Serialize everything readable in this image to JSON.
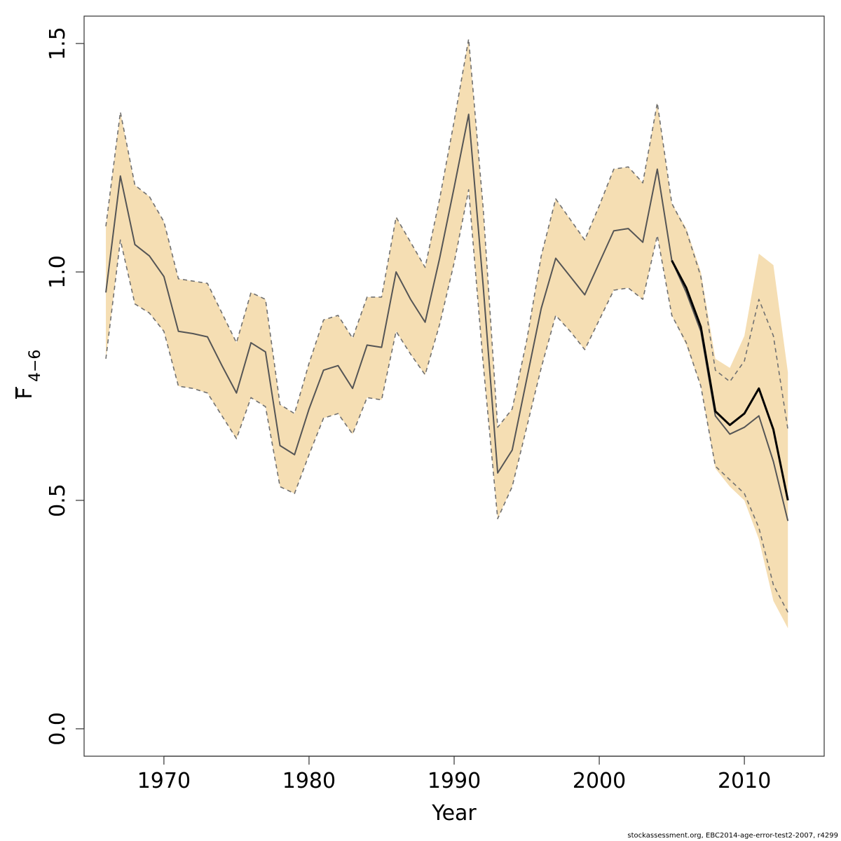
{
  "chart_data": {
    "type": "line",
    "xlabel": "Year",
    "ylabel": "F",
    "ylabel_subscript": "4−6",
    "xlim": [
      1964.5,
      2015.5
    ],
    "ylim": [
      -0.06,
      1.56
    ],
    "xticks": [
      1970,
      1980,
      1990,
      2000,
      2010
    ],
    "yticks": [
      0.0,
      0.5,
      1.0,
      1.5
    ],
    "xtick_labels": [
      "1970",
      "1980",
      "1990",
      "2000",
      "2010"
    ],
    "ytick_labels": [
      "0.0",
      "0.5",
      "1.0",
      "1.5"
    ],
    "grid": false,
    "legend": "none",
    "colors": {
      "band": "#F5DEB3",
      "prior_line": "#555555",
      "current_line": "#000000",
      "dashed_bounds": "#707070"
    },
    "band": {
      "x": [
        1966,
        1967,
        1968,
        1969,
        1970,
        1971,
        1972,
        1973,
        1974,
        1975,
        1976,
        1977,
        1978,
        1979,
        1980,
        1981,
        1982,
        1983,
        1984,
        1985,
        1986,
        1987,
        1988,
        1989,
        1990,
        1991,
        1992,
        1993,
        1994,
        1995,
        1996,
        1997,
        1998,
        1999,
        2000,
        2001,
        2002,
        2003,
        2004,
        2005,
        2006,
        2007,
        2008,
        2009,
        2010,
        2011,
        2012,
        2013
      ],
      "lower": [
        0.81,
        1.07,
        0.93,
        0.91,
        0.87,
        0.75,
        0.745,
        0.735,
        0.685,
        0.635,
        0.725,
        0.705,
        0.53,
        0.515,
        0.6,
        0.68,
        0.69,
        0.645,
        0.725,
        0.72,
        0.87,
        0.82,
        0.775,
        0.885,
        1.02,
        1.18,
        0.8,
        0.46,
        0.53,
        0.66,
        0.79,
        0.905,
        0.87,
        0.83,
        0.895,
        0.96,
        0.965,
        0.94,
        1.08,
        0.905,
        0.84,
        0.75,
        0.57,
        0.53,
        0.5,
        0.415,
        0.28,
        0.22
      ],
      "upper": [
        1.1,
        1.35,
        1.19,
        1.165,
        1.11,
        0.985,
        0.98,
        0.975,
        0.91,
        0.845,
        0.955,
        0.94,
        0.71,
        0.69,
        0.8,
        0.895,
        0.905,
        0.855,
        0.945,
        0.945,
        1.12,
        1.065,
        1.01,
        1.16,
        1.33,
        1.51,
        1.14,
        0.66,
        0.7,
        0.85,
        1.035,
        1.16,
        1.115,
        1.07,
        1.145,
        1.225,
        1.23,
        1.195,
        1.37,
        1.15,
        1.095,
        1.0,
        0.81,
        0.79,
        0.86,
        1.04,
        1.015,
        0.78
      ]
    },
    "series": [
      {
        "x": [
          1966,
          1967,
          1968,
          1969,
          1970,
          1971,
          1972,
          1973,
          1974,
          1975,
          1976,
          1977,
          1978,
          1979,
          1980,
          1981,
          1982,
          1983,
          1984,
          1985,
          1986,
          1987,
          1988,
          1989,
          1990,
          1991,
          1992,
          1993,
          1994,
          1995,
          1996,
          1997,
          1998,
          1999,
          2000,
          2001,
          2002,
          2003,
          2004,
          2005,
          2006,
          2007,
          2008,
          2009,
          2010,
          2011,
          2012,
          2013
        ],
        "values": [
          0.955,
          1.21,
          1.06,
          1.035,
          0.99,
          0.87,
          0.865,
          0.858,
          0.795,
          0.735,
          0.845,
          0.825,
          0.62,
          0.6,
          0.7,
          0.785,
          0.795,
          0.745,
          0.84,
          0.835,
          1.0,
          0.94,
          0.89,
          1.03,
          1.185,
          1.345,
          0.97,
          0.56,
          0.61,
          0.765,
          0.92,
          1.03,
          0.99,
          0.95,
          1.02,
          1.09,
          1.095,
          1.065,
          1.225,
          1.025,
          0.955,
          0.87,
          0.685,
          0.645,
          0.66,
          0.685,
          0.585,
          0.455
        ],
        "style": "thin-gray"
      },
      {
        "x": [
          2005,
          2006,
          2007,
          2008,
          2009,
          2010,
          2011,
          2012,
          2013
        ],
        "values": [
          1.025,
          0.965,
          0.88,
          0.695,
          0.665,
          0.69,
          0.745,
          0.655,
          0.5
        ],
        "style": "bold-black"
      },
      {
        "x": [
          1966,
          1967,
          1968,
          1969,
          1970,
          1971,
          1972,
          1973,
          1974,
          1975,
          1976,
          1977,
          1978,
          1979,
          1980,
          1981,
          1982,
          1983,
          1984,
          1985,
          1986,
          1987,
          1988,
          1989,
          1990,
          1991,
          1992,
          1993,
          1994,
          1995,
          1996,
          1997,
          1998,
          1999,
          2000,
          2001,
          2002,
          2003,
          2004,
          2005,
          2006,
          2007,
          2008,
          2009,
          2010,
          2011,
          2012,
          2013
        ],
        "values": [
          1.1,
          1.35,
          1.19,
          1.165,
          1.11,
          0.985,
          0.98,
          0.975,
          0.91,
          0.845,
          0.955,
          0.94,
          0.71,
          0.69,
          0.8,
          0.895,
          0.905,
          0.855,
          0.945,
          0.945,
          1.12,
          1.065,
          1.01,
          1.16,
          1.33,
          1.51,
          1.14,
          0.66,
          0.7,
          0.85,
          1.035,
          1.16,
          1.115,
          1.07,
          1.145,
          1.225,
          1.23,
          1.195,
          1.37,
          1.15,
          1.09,
          0.99,
          0.785,
          0.76,
          0.805,
          0.94,
          0.86,
          0.655
        ],
        "style": "dashed-upper"
      },
      {
        "x": [
          1966,
          1967,
          1968,
          1969,
          1970,
          1971,
          1972,
          1973,
          1974,
          1975,
          1976,
          1977,
          1978,
          1979,
          1980,
          1981,
          1982,
          1983,
          1984,
          1985,
          1986,
          1987,
          1988,
          1989,
          1990,
          1991,
          1992,
          1993,
          1994,
          1995,
          1996,
          1997,
          1998,
          1999,
          2000,
          2001,
          2002,
          2003,
          2004,
          2005,
          2006,
          2007,
          2008,
          2009,
          2010,
          2011,
          2012,
          2013
        ],
        "values": [
          0.81,
          1.07,
          0.93,
          0.91,
          0.87,
          0.75,
          0.745,
          0.735,
          0.685,
          0.635,
          0.725,
          0.705,
          0.53,
          0.515,
          0.6,
          0.68,
          0.69,
          0.645,
          0.725,
          0.72,
          0.87,
          0.82,
          0.775,
          0.885,
          1.02,
          1.18,
          0.8,
          0.46,
          0.53,
          0.66,
          0.79,
          0.905,
          0.87,
          0.83,
          0.895,
          0.96,
          0.965,
          0.94,
          1.08,
          0.905,
          0.845,
          0.75,
          0.575,
          0.545,
          0.515,
          0.44,
          0.315,
          0.255
        ],
        "style": "dashed-lower"
      }
    ]
  },
  "footer": {
    "caption": "stockassessment.org, EBC2014-age-error-test2-2007, r4299"
  }
}
